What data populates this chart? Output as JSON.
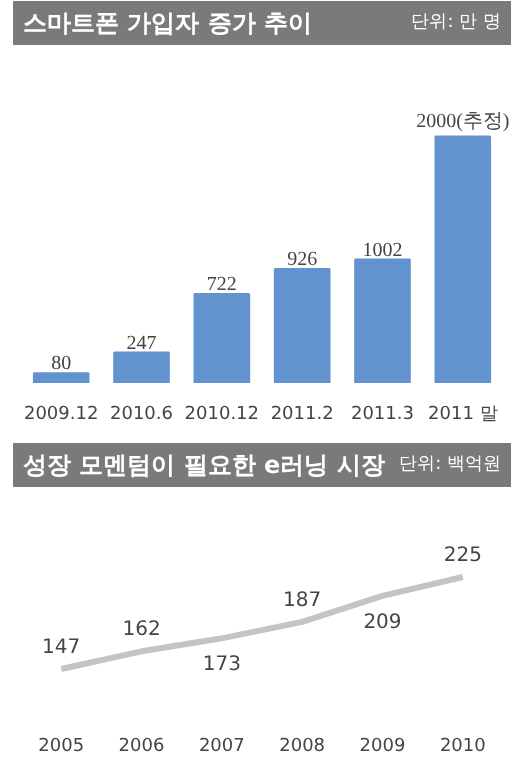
{
  "chart_data": [
    {
      "type": "bar",
      "title": "스마트폰 가입자 증가 추이",
      "annotations": [
        "단위: 만 명"
      ],
      "categories": [
        "2009.12",
        "2010.6",
        "2010.12",
        "2011.2",
        "2011.3",
        "2011 말"
      ],
      "values": [
        80,
        247,
        722,
        926,
        1002,
        2000
      ],
      "color": "#6393cf",
      "value_labels": [
        "80",
        "247",
        "722",
        "926",
        "1002",
        "2000(추정)"
      ]
    },
    {
      "type": "line",
      "title": "성장 모멘텀이 필요한 e러닝 시장",
      "annotations": [
        "단위: 백억원"
      ],
      "categories": [
        "2005",
        "2006",
        "2007",
        "2008",
        "2009",
        "2010"
      ],
      "values": [
        147,
        162,
        173,
        187,
        209,
        225
      ],
      "color": "#c4c4c4",
      "data_labels": true
    }
  ]
}
